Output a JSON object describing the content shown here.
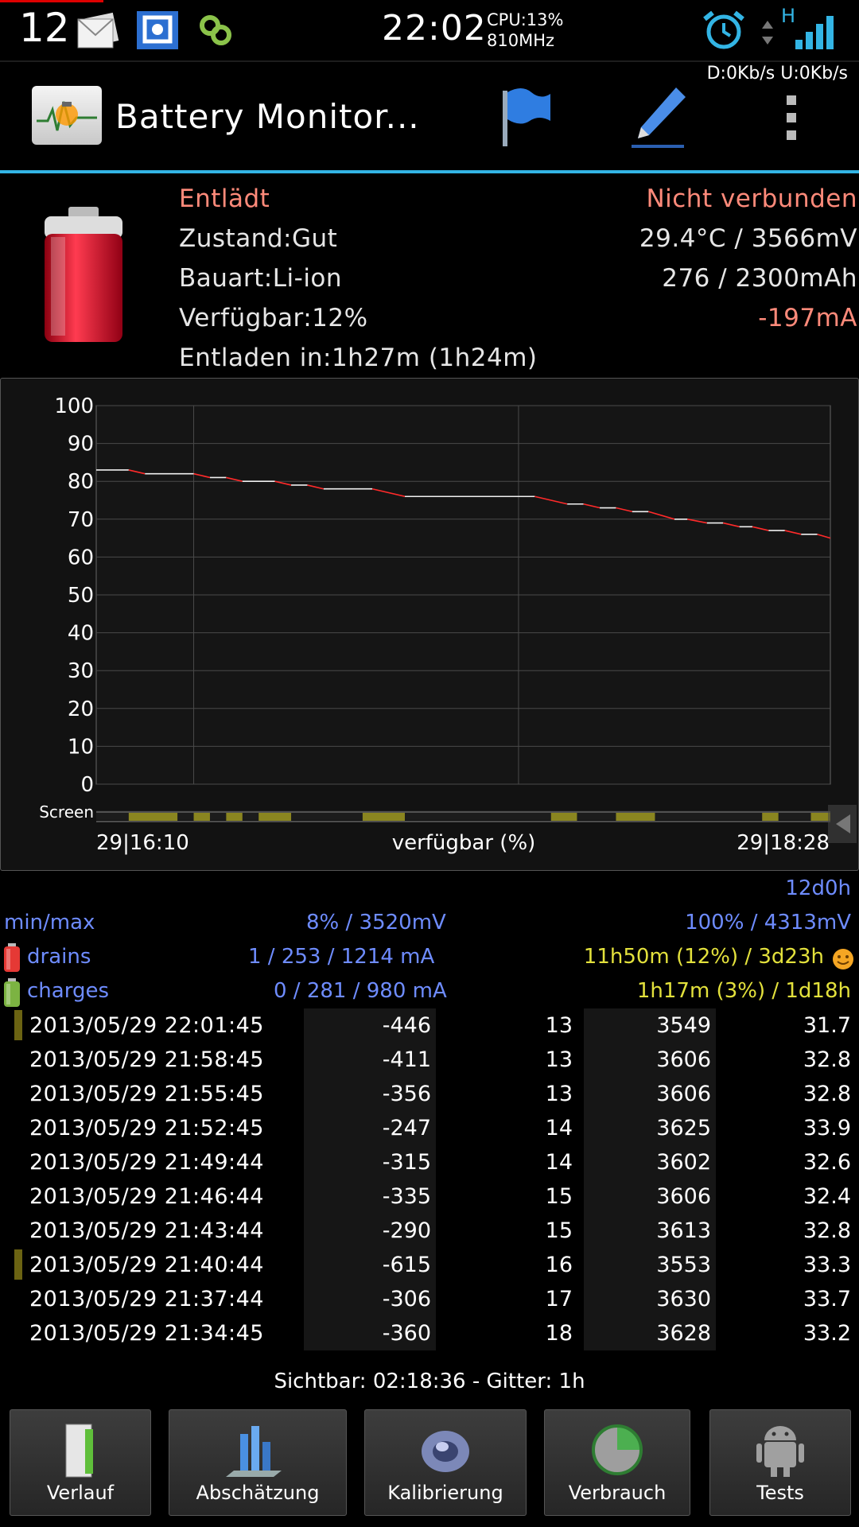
{
  "status_bar": {
    "notification_count": "12",
    "clock": "22:02",
    "cpu": "CPU:13%",
    "freq": "810MHz",
    "network_type": "H",
    "data_speed": "D:0Kb/s  U:0Kb/s"
  },
  "action_bar": {
    "title": "Battery Monitor...",
    "actions": [
      "flag-icon",
      "edit-icon",
      "overflow-menu-icon"
    ]
  },
  "info": {
    "state": "Entlädt",
    "connection": "Nicht verbunden",
    "health": "Zustand:Gut",
    "temp_voltage": "29.4°C / 3566mV",
    "type": "Bauart:Li-ion",
    "capacity": "276 / 2300mAh",
    "available": "Verfügbar:12%",
    "current": "-197mA",
    "discharge_in": "Entladen in:1h27m (1h24m)"
  },
  "chart_data": {
    "type": "line",
    "xlabel": "verfügbar (%)",
    "x_start_label": "29|16:10",
    "x_end_label": "29|18:28",
    "ylim": [
      0,
      100
    ],
    "yticks": [
      0,
      10,
      20,
      30,
      40,
      50,
      60,
      70,
      80,
      90,
      100
    ],
    "grid": true,
    "screen_label": "Screen",
    "x_minutes": [
      0,
      10,
      15,
      30,
      35,
      45,
      50,
      60,
      65,
      75,
      80,
      85,
      100,
      130,
      148,
      158,
      162,
      170,
      175,
      185,
      188,
      195,
      200,
      205,
      210,
      215,
      220,
      225,
      230,
      237
    ],
    "x": [
      "16:10",
      "16:20",
      "16:25",
      "16:40",
      "16:45",
      "16:55",
      "17:00",
      "17:10",
      "17:15",
      "17:25",
      "17:30",
      "17:35",
      "17:50",
      "18:20",
      "18:38"
    ],
    "series": [
      {
        "color": "#ff2a2a",
        "points": [
          [
            0,
            83
          ],
          [
            10,
            83
          ],
          [
            15,
            82
          ],
          [
            30,
            82
          ],
          [
            35,
            81
          ],
          [
            40,
            81
          ],
          [
            45,
            80
          ],
          [
            55,
            80
          ],
          [
            60,
            79
          ],
          [
            65,
            79
          ],
          [
            70,
            78
          ],
          [
            85,
            78
          ],
          [
            95,
            76
          ],
          [
            135,
            76
          ],
          [
            145,
            74
          ],
          [
            150,
            74
          ],
          [
            155,
            73
          ],
          [
            160,
            73
          ],
          [
            165,
            72
          ],
          [
            170,
            72
          ],
          [
            178,
            70
          ],
          [
            182,
            70
          ],
          [
            188,
            69
          ],
          [
            193,
            69
          ],
          [
            198,
            68
          ],
          [
            202,
            68
          ],
          [
            207,
            67
          ],
          [
            212,
            67
          ],
          [
            217,
            66
          ],
          [
            222,
            66
          ],
          [
            226,
            65
          ]
        ]
      }
    ],
    "screen_segments": [
      [
        10,
        25
      ],
      [
        30,
        35
      ],
      [
        40,
        45
      ],
      [
        50,
        60
      ],
      [
        82,
        95
      ],
      [
        140,
        148
      ],
      [
        160,
        172
      ],
      [
        205,
        210
      ],
      [
        220,
        226
      ]
    ]
  },
  "stats": {
    "duration": "12d0h",
    "minmax_label": "min/max",
    "min": "8% / 3520mV",
    "max": "100% / 4313mV",
    "drains_label": "drains",
    "drains_values": "1 / 253 / 1214 mA",
    "drains_time": "11h50m (12%) / 3d23h",
    "charges_label": "charges",
    "charges_values": "0 / 281 / 980 mA",
    "charges_time": "1h17m (3%) / 1d18h"
  },
  "log": [
    {
      "ts": "2013/05/29  22:01:45",
      "ma": "-446",
      "pct": "13",
      "mv": "3549",
      "temp": "31.7",
      "screen": true
    },
    {
      "ts": "2013/05/29  21:58:45",
      "ma": "-411",
      "pct": "13",
      "mv": "3606",
      "temp": "32.8",
      "screen": false
    },
    {
      "ts": "2013/05/29  21:55:45",
      "ma": "-356",
      "pct": "13",
      "mv": "3606",
      "temp": "32.8",
      "screen": false
    },
    {
      "ts": "2013/05/29  21:52:45",
      "ma": "-247",
      "pct": "14",
      "mv": "3625",
      "temp": "33.9",
      "screen": false
    },
    {
      "ts": "2013/05/29  21:49:44",
      "ma": "-315",
      "pct": "14",
      "mv": "3602",
      "temp": "32.6",
      "screen": false
    },
    {
      "ts": "2013/05/29  21:46:44",
      "ma": "-335",
      "pct": "15",
      "mv": "3606",
      "temp": "32.4",
      "screen": false
    },
    {
      "ts": "2013/05/29  21:43:44",
      "ma": "-290",
      "pct": "15",
      "mv": "3613",
      "temp": "32.8",
      "screen": false
    },
    {
      "ts": "2013/05/29  21:40:44",
      "ma": "-615",
      "pct": "16",
      "mv": "3553",
      "temp": "33.3",
      "screen": true
    },
    {
      "ts": "2013/05/29  21:37:44",
      "ma": "-306",
      "pct": "17",
      "mv": "3630",
      "temp": "33.7",
      "screen": false
    },
    {
      "ts": "2013/05/29  21:34:45",
      "ma": "-360",
      "pct": "18",
      "mv": "3628",
      "temp": "33.2",
      "screen": false
    }
  ],
  "visible_caption": "Sichtbar: 02:18:36 - Gitter: 1h",
  "nav": [
    {
      "label": "Verlauf",
      "icon": "door-icon"
    },
    {
      "label": "Abschätzung",
      "icon": "bar-chart-icon"
    },
    {
      "label": "Kalibrierung",
      "icon": "disc-icon"
    },
    {
      "label": "Verbrauch",
      "icon": "pie-chart-icon"
    },
    {
      "label": "Tests",
      "icon": "android-icon"
    }
  ]
}
